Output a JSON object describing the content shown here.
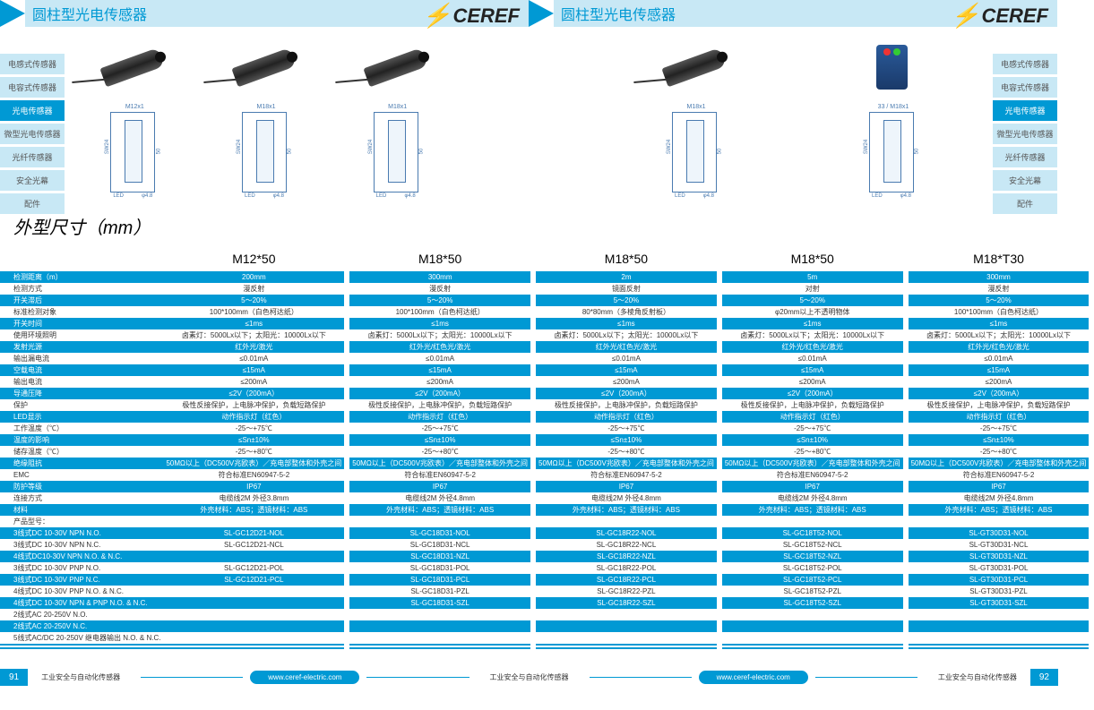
{
  "header_title": "圆柱型光电传感器",
  "logo_text": "CEREF",
  "sidebar": [
    "电感式传感器",
    "电容式传感器",
    "光电传感器",
    "微型光电传感器",
    "光纤传感器",
    "安全光幕",
    "配件"
  ],
  "sidebar_active": 2,
  "dim_title": "外型尺寸（mm）",
  "columns": [
    "M12*50",
    "M18*50",
    "M18*50",
    "M18*50",
    "M18*T30"
  ],
  "diag_labels": [
    "M12x1",
    "M18x1",
    "M18x1",
    "M18x1",
    "33 / M18x1"
  ],
  "spec_rows": [
    {
      "c": "b",
      "l": "检测距离（m）",
      "v": [
        "200mm",
        "300mm",
        "2m",
        "5m",
        "300mm"
      ]
    },
    {
      "c": "w",
      "l": "检测方式",
      "v": [
        "漫反射",
        "漫反射",
        "镜面反射",
        "对射",
        "漫反射"
      ]
    },
    {
      "c": "b",
      "l": "开关滞后",
      "v": [
        "5～20%",
        "5～20%",
        "5～20%",
        "5～20%",
        "5～20%"
      ]
    },
    {
      "c": "w",
      "l": "标准检测对象",
      "v": [
        "100*100mm（白色柯达纸）",
        "100*100mm（白色柯达纸）",
        "80*80mm（多棱角反射板）",
        "φ20mm以上不透明物体",
        "100*100mm（白色柯达纸）"
      ]
    },
    {
      "c": "b",
      "l": "开关时间",
      "v": [
        "≤1ms",
        "≤1ms",
        "≤1ms",
        "≤1ms",
        "≤1ms"
      ]
    },
    {
      "c": "w",
      "l": "使用环境照明",
      "v": [
        "卤素灯：5000Lx以下；太阳光：10000Lx以下",
        "卤素灯：5000Lx以下；太阳光：10000Lx以下",
        "卤素灯：5000Lx以下；太阳光：10000Lx以下",
        "卤素灯：5000Lx以下；太阳光：10000Lx以下",
        "卤素灯：5000Lx以下；太阳光：10000Lx以下"
      ]
    },
    {
      "c": "b",
      "l": "发射光源",
      "v": [
        "红外光/激光",
        "红外光/红色光/激光",
        "红外光/红色光/激光",
        "红外光/红色光/激光",
        "红外光/红色光/激光"
      ]
    },
    {
      "c": "w",
      "l": "输出漏电流",
      "v": [
        "≤0.01mA",
        "≤0.01mA",
        "≤0.01mA",
        "≤0.01mA",
        "≤0.01mA"
      ]
    },
    {
      "c": "b",
      "l": "空载电流",
      "v": [
        "≤15mA",
        "≤15mA",
        "≤15mA",
        "≤15mA",
        "≤15mA"
      ]
    },
    {
      "c": "w",
      "l": "输出电流",
      "v": [
        "≤200mA",
        "≤200mA",
        "≤200mA",
        "≤200mA",
        "≤200mA"
      ]
    },
    {
      "c": "b",
      "l": "导通压降",
      "v": [
        "≤2V（200mA）",
        "≤2V（200mA）",
        "≤2V（200mA）",
        "≤2V（200mA）",
        "≤2V（200mA）"
      ]
    },
    {
      "c": "w",
      "l": "保护",
      "v": [
        "极性反接保护，上电脉冲保护，负载短路保护",
        "极性反接保护，上电脉冲保护，负载短路保护",
        "极性反接保护，上电脉冲保护，负载短路保护",
        "极性反接保护，上电脉冲保护，负载短路保护",
        "极性反接保护，上电脉冲保护，负载短路保护"
      ]
    },
    {
      "c": "b",
      "l": "LED显示",
      "v": [
        "动作指示灯（红色）",
        "动作指示灯（红色）",
        "动作指示灯（红色）",
        "动作指示灯（红色）",
        "动作指示灯（红色）"
      ]
    },
    {
      "c": "w",
      "l": "工作温度（℃）",
      "v": [
        "-25～+75℃",
        "-25～+75℃",
        "-25～+75℃",
        "-25～+75℃",
        "-25～+75℃"
      ]
    },
    {
      "c": "b",
      "l": "温度的影响",
      "v": [
        "≤Sn±10%",
        "≤Sn±10%",
        "≤Sn±10%",
        "≤Sn±10%",
        "≤Sn±10%"
      ]
    },
    {
      "c": "w",
      "l": "储存温度（℃）",
      "v": [
        "-25～+80℃",
        "-25～+80℃",
        "-25～+80℃",
        "-25～+80℃",
        "-25～+80℃"
      ]
    },
    {
      "c": "b",
      "l": "绝缘阻抗",
      "v": [
        "50MΩ以上（DC500V兆欧表）／充电部整体和外壳之间",
        "50MΩ以上（DC500V兆欧表）／充电部整体和外壳之间",
        "50MΩ以上（DC500V兆欧表）／充电部整体和外壳之间",
        "50MΩ以上（DC500V兆欧表）／充电部整体和外壳之间",
        "50MΩ以上（DC500V兆欧表）／充电部整体和外壳之间"
      ]
    },
    {
      "c": "w",
      "l": "EMC",
      "v": [
        "符合标准EN60947-5-2",
        "符合标准EN60947-5-2",
        "符合标准EN60947-5-2",
        "符合标准EN60947-5-2",
        "符合标准EN60947-5-2"
      ]
    },
    {
      "c": "b",
      "l": "防护等级",
      "v": [
        "IP67",
        "IP67",
        "IP67",
        "IP67",
        "IP67"
      ]
    },
    {
      "c": "w",
      "l": "连接方式",
      "v": [
        "电缆线2M 外径3.8mm",
        "电缆线2M 外径4.8mm",
        "电缆线2M 外径4.8mm",
        "电缆线2M 外径4.8mm",
        "电缆线2M 外径4.8mm"
      ]
    },
    {
      "c": "b",
      "l": "材料",
      "v": [
        "外壳材料：ABS；透镜材料：ABS",
        "外壳材料：ABS；透镜材料：ABS",
        "外壳材料：ABS；透镜材料：ABS",
        "外壳材料：ABS；透镜材料：ABS",
        "外壳材料：ABS；透镜材料：ABS"
      ]
    },
    {
      "c": "w",
      "l": "产品型号：",
      "v": [
        "",
        "",
        "",
        "",
        ""
      ]
    },
    {
      "c": "b",
      "l": "3线式DC 10-30V NPN N.O.",
      "v": [
        "SL-GC12D21-NOL",
        "SL-GC18D31-NOL",
        "SL-GC18R22-NOL",
        "SL-GC18T52-NOL",
        "SL-GT30D31-NOL"
      ]
    },
    {
      "c": "w",
      "l": "3线式DC 10-30V NPN N.C.",
      "v": [
        "SL-GC12D21-NCL",
        "SL-GC18D31-NCL",
        "SL-GC18R22-NCL",
        "SL-GC18T52-NCL",
        "SL-GT30D31-NCL"
      ]
    },
    {
      "c": "b",
      "l": "4线式DC10-30V NPN N.O. & N.C.",
      "v": [
        "",
        "SL-GC18D31-NZL",
        "SL-GC18R22-NZL",
        "SL-GC18T52-NZL",
        "SL-GT30D31-NZL"
      ]
    },
    {
      "c": "w",
      "l": "3线式DC 10-30V PNP N.O.",
      "v": [
        "SL-GC12D21-POL",
        "SL-GC18D31-POL",
        "SL-GC18R22-POL",
        "SL-GC18T52-POL",
        "SL-GT30D31-POL"
      ]
    },
    {
      "c": "b",
      "l": "3线式DC 10-30V PNP N.C.",
      "v": [
        "SL-GC12D21-PCL",
        "SL-GC18D31-PCL",
        "SL-GC18R22-PCL",
        "SL-GC18T52-PCL",
        "SL-GT30D31-PCL"
      ]
    },
    {
      "c": "w",
      "l": "4线式DC 10-30V PNP N.O. & N.C.",
      "v": [
        "",
        "SL-GC18D31-PZL",
        "SL-GC18R22-PZL",
        "SL-GC18T52-PZL",
        "SL-GT30D31-PZL"
      ]
    },
    {
      "c": "b",
      "l": "4线式DC 10-30V NPN & PNP N.O. & N.C.",
      "v": [
        "",
        "SL-GC18D31-SZL",
        "SL-GC18R22-SZL",
        "SL-GC18T52-SZL",
        "SL-GT30D31-SZL"
      ]
    },
    {
      "c": "w",
      "l": "2线式AC 20-250V N.O.",
      "v": [
        "",
        "",
        "",
        "",
        ""
      ]
    },
    {
      "c": "b",
      "l": "2线式AC 20-250V N.C.",
      "v": [
        "",
        "",
        "",
        "",
        ""
      ]
    },
    {
      "c": "w",
      "l": "5线式AC/DC 20-250V 继电器输出 N.O. & N.C.",
      "v": [
        "",
        "",
        "",
        "",
        ""
      ]
    },
    {
      "c": "b",
      "l": "",
      "v": [
        "",
        "",
        "",
        "",
        ""
      ]
    },
    {
      "c": "w",
      "l": "",
      "v": [
        "",
        "",
        "",
        "",
        ""
      ]
    },
    {
      "c": "b",
      "l": "",
      "v": [
        "",
        "",
        "",
        "",
        ""
      ]
    }
  ],
  "footer_text": "工业安全与自动化传感器",
  "footer_url": "www.ceref-electric.com",
  "page_left": "91",
  "page_right": "92"
}
